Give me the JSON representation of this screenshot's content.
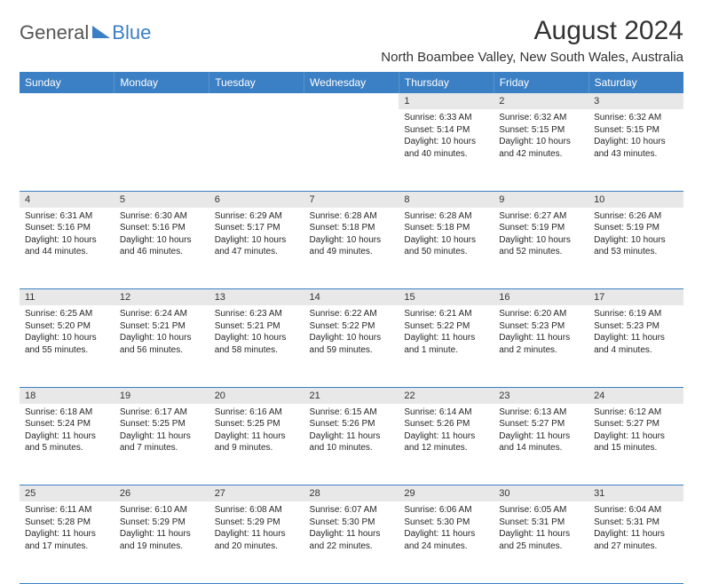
{
  "logo": {
    "part1": "General",
    "part2": "Blue",
    "triangle_fill": "#3b7fc4"
  },
  "header": {
    "month_title": "August 2024",
    "location": "North Boambee Valley, New South Wales, Australia"
  },
  "colors": {
    "header_bg": "#3b7fc4",
    "header_text": "#ffffff",
    "daynum_bg": "#e8e8e8",
    "text": "#262626",
    "rule": "#3b7fc4"
  },
  "day_headers": [
    "Sunday",
    "Monday",
    "Tuesday",
    "Wednesday",
    "Thursday",
    "Friday",
    "Saturday"
  ],
  "weeks": [
    [
      {
        "n": "",
        "lines": []
      },
      {
        "n": "",
        "lines": []
      },
      {
        "n": "",
        "lines": []
      },
      {
        "n": "",
        "lines": []
      },
      {
        "n": "1",
        "lines": [
          "Sunrise: 6:33 AM",
          "Sunset: 5:14 PM",
          "Daylight: 10 hours and 40 minutes."
        ]
      },
      {
        "n": "2",
        "lines": [
          "Sunrise: 6:32 AM",
          "Sunset: 5:15 PM",
          "Daylight: 10 hours and 42 minutes."
        ]
      },
      {
        "n": "3",
        "lines": [
          "Sunrise: 6:32 AM",
          "Sunset: 5:15 PM",
          "Daylight: 10 hours and 43 minutes."
        ]
      }
    ],
    [
      {
        "n": "4",
        "lines": [
          "Sunrise: 6:31 AM",
          "Sunset: 5:16 PM",
          "Daylight: 10 hours and 44 minutes."
        ]
      },
      {
        "n": "5",
        "lines": [
          "Sunrise: 6:30 AM",
          "Sunset: 5:16 PM",
          "Daylight: 10 hours and 46 minutes."
        ]
      },
      {
        "n": "6",
        "lines": [
          "Sunrise: 6:29 AM",
          "Sunset: 5:17 PM",
          "Daylight: 10 hours and 47 minutes."
        ]
      },
      {
        "n": "7",
        "lines": [
          "Sunrise: 6:28 AM",
          "Sunset: 5:18 PM",
          "Daylight: 10 hours and 49 minutes."
        ]
      },
      {
        "n": "8",
        "lines": [
          "Sunrise: 6:28 AM",
          "Sunset: 5:18 PM",
          "Daylight: 10 hours and 50 minutes."
        ]
      },
      {
        "n": "9",
        "lines": [
          "Sunrise: 6:27 AM",
          "Sunset: 5:19 PM",
          "Daylight: 10 hours and 52 minutes."
        ]
      },
      {
        "n": "10",
        "lines": [
          "Sunrise: 6:26 AM",
          "Sunset: 5:19 PM",
          "Daylight: 10 hours and 53 minutes."
        ]
      }
    ],
    [
      {
        "n": "11",
        "lines": [
          "Sunrise: 6:25 AM",
          "Sunset: 5:20 PM",
          "Daylight: 10 hours and 55 minutes."
        ]
      },
      {
        "n": "12",
        "lines": [
          "Sunrise: 6:24 AM",
          "Sunset: 5:21 PM",
          "Daylight: 10 hours and 56 minutes."
        ]
      },
      {
        "n": "13",
        "lines": [
          "Sunrise: 6:23 AM",
          "Sunset: 5:21 PM",
          "Daylight: 10 hours and 58 minutes."
        ]
      },
      {
        "n": "14",
        "lines": [
          "Sunrise: 6:22 AM",
          "Sunset: 5:22 PM",
          "Daylight: 10 hours and 59 minutes."
        ]
      },
      {
        "n": "15",
        "lines": [
          "Sunrise: 6:21 AM",
          "Sunset: 5:22 PM",
          "Daylight: 11 hours and 1 minute."
        ]
      },
      {
        "n": "16",
        "lines": [
          "Sunrise: 6:20 AM",
          "Sunset: 5:23 PM",
          "Daylight: 11 hours and 2 minutes."
        ]
      },
      {
        "n": "17",
        "lines": [
          "Sunrise: 6:19 AM",
          "Sunset: 5:23 PM",
          "Daylight: 11 hours and 4 minutes."
        ]
      }
    ],
    [
      {
        "n": "18",
        "lines": [
          "Sunrise: 6:18 AM",
          "Sunset: 5:24 PM",
          "Daylight: 11 hours and 5 minutes."
        ]
      },
      {
        "n": "19",
        "lines": [
          "Sunrise: 6:17 AM",
          "Sunset: 5:25 PM",
          "Daylight: 11 hours and 7 minutes."
        ]
      },
      {
        "n": "20",
        "lines": [
          "Sunrise: 6:16 AM",
          "Sunset: 5:25 PM",
          "Daylight: 11 hours and 9 minutes."
        ]
      },
      {
        "n": "21",
        "lines": [
          "Sunrise: 6:15 AM",
          "Sunset: 5:26 PM",
          "Daylight: 11 hours and 10 minutes."
        ]
      },
      {
        "n": "22",
        "lines": [
          "Sunrise: 6:14 AM",
          "Sunset: 5:26 PM",
          "Daylight: 11 hours and 12 minutes."
        ]
      },
      {
        "n": "23",
        "lines": [
          "Sunrise: 6:13 AM",
          "Sunset: 5:27 PM",
          "Daylight: 11 hours and 14 minutes."
        ]
      },
      {
        "n": "24",
        "lines": [
          "Sunrise: 6:12 AM",
          "Sunset: 5:27 PM",
          "Daylight: 11 hours and 15 minutes."
        ]
      }
    ],
    [
      {
        "n": "25",
        "lines": [
          "Sunrise: 6:11 AM",
          "Sunset: 5:28 PM",
          "Daylight: 11 hours and 17 minutes."
        ]
      },
      {
        "n": "26",
        "lines": [
          "Sunrise: 6:10 AM",
          "Sunset: 5:29 PM",
          "Daylight: 11 hours and 19 minutes."
        ]
      },
      {
        "n": "27",
        "lines": [
          "Sunrise: 6:08 AM",
          "Sunset: 5:29 PM",
          "Daylight: 11 hours and 20 minutes."
        ]
      },
      {
        "n": "28",
        "lines": [
          "Sunrise: 6:07 AM",
          "Sunset: 5:30 PM",
          "Daylight: 11 hours and 22 minutes."
        ]
      },
      {
        "n": "29",
        "lines": [
          "Sunrise: 6:06 AM",
          "Sunset: 5:30 PM",
          "Daylight: 11 hours and 24 minutes."
        ]
      },
      {
        "n": "30",
        "lines": [
          "Sunrise: 6:05 AM",
          "Sunset: 5:31 PM",
          "Daylight: 11 hours and 25 minutes."
        ]
      },
      {
        "n": "31",
        "lines": [
          "Sunrise: 6:04 AM",
          "Sunset: 5:31 PM",
          "Daylight: 11 hours and 27 minutes."
        ]
      }
    ]
  ]
}
